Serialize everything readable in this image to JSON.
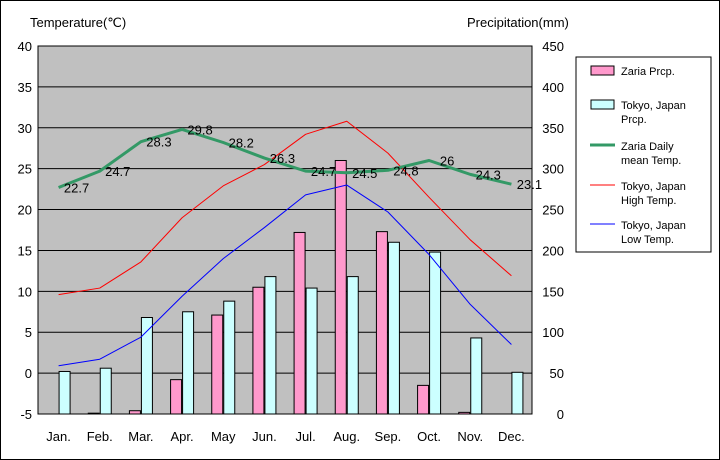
{
  "chart_data": {
    "type": "bar",
    "left_axis_title": "Temperature(℃)",
    "right_axis_title": "Precipitation(mm)",
    "categories": [
      "Jan.",
      "Feb.",
      "Mar.",
      "Apr.",
      "May",
      "Jun.",
      "Jul.",
      "Aug.",
      "Sep.",
      "Oct.",
      "Nov.",
      "Dec."
    ],
    "left_axis": {
      "min": -5,
      "max": 40,
      "ticks": [
        "40",
        "35",
        "30",
        "25",
        "20",
        "15",
        "10",
        "5",
        "0",
        "-5"
      ]
    },
    "right_axis": {
      "min": 0,
      "max": 450,
      "ticks": [
        "450",
        "400",
        "350",
        "300",
        "250",
        "200",
        "150",
        "100",
        "50",
        "0"
      ]
    },
    "grid": true,
    "legend_position": "right",
    "plot_background": "#c0c0c0",
    "bar_series": [
      {
        "name": "Zaria Prcp.",
        "axis": "right",
        "color": "#ff99cc",
        "values": [
          0,
          1,
          4,
          42,
          121,
          155,
          222,
          310,
          223,
          35,
          2,
          0
        ]
      },
      {
        "name": "Tokyo, Japan Prcp.",
        "axis": "right",
        "color": "#ccffff",
        "values": [
          52,
          56,
          118,
          125,
          138,
          168,
          154,
          168,
          210,
          198,
          93,
          51
        ]
      }
    ],
    "line_series": [
      {
        "name": "Zaria Daily mean Temp.",
        "axis": "left",
        "color": "#339966",
        "width": 3,
        "values": [
          22.7,
          24.7,
          28.3,
          29.8,
          28.2,
          26.3,
          24.7,
          24.5,
          24.8,
          26.0,
          24.3,
          23.1
        ],
        "labels": [
          "22.7",
          "24.7",
          "28.3",
          "29.8",
          "28.2",
          "26.3",
          "24.7",
          "24.5",
          "24.8",
          "26",
          "24.3",
          "23.1"
        ]
      },
      {
        "name": "Tokyo, Japan High Temp.",
        "axis": "left",
        "color": "#ff0000",
        "width": 1,
        "values": [
          9.6,
          10.4,
          13.6,
          19.0,
          22.9,
          25.5,
          29.2,
          30.8,
          26.9,
          21.5,
          16.3,
          11.9
        ]
      },
      {
        "name": "Tokyo, Japan Low Temp.",
        "axis": "left",
        "color": "#0000ff",
        "width": 1,
        "values": [
          0.9,
          1.7,
          4.4,
          9.4,
          14.0,
          17.8,
          21.8,
          23.0,
          19.7,
          14.5,
          8.4,
          3.5
        ]
      }
    ],
    "legend": [
      {
        "label_lines": [
          "Zaria Prcp."
        ],
        "kind": "bar",
        "color": "#ff99cc"
      },
      {
        "label_lines": [
          "Tokyo, Japan",
          "Prcp."
        ],
        "kind": "bar",
        "color": "#ccffff"
      },
      {
        "label_lines": [
          "Zaria Daily",
          "mean Temp."
        ],
        "kind": "line",
        "color": "#339966"
      },
      {
        "label_lines": [
          "Tokyo, Japan",
          "High Temp."
        ],
        "kind": "line",
        "color": "#ff0000"
      },
      {
        "label_lines": [
          "Tokyo, Japan",
          "Low Temp."
        ],
        "kind": "line",
        "color": "#0000ff"
      }
    ]
  }
}
